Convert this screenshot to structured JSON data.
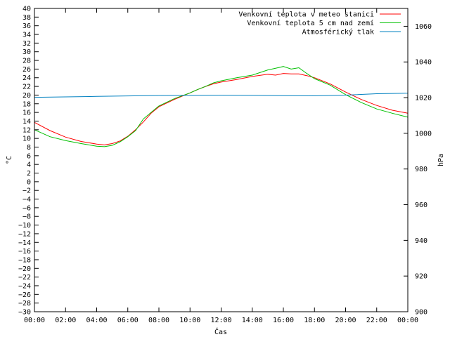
{
  "chart_data": {
    "type": "line",
    "xlabel": "Čas",
    "ylabel": "°C",
    "y2label": "hPa",
    "xlim": [
      0,
      24
    ],
    "ylim": [
      -30,
      40
    ],
    "y2lim": [
      900,
      1070
    ],
    "x_ticks": [
      "00:00",
      "02:00",
      "04:00",
      "06:00",
      "08:00",
      "10:00",
      "12:00",
      "14:00",
      "16:00",
      "18:00",
      "20:00",
      "22:00",
      "00:00"
    ],
    "y_ticks": [
      40,
      38,
      36,
      34,
      32,
      30,
      28,
      26,
      24,
      22,
      20,
      18,
      16,
      14,
      12,
      10,
      8,
      6,
      4,
      2,
      0,
      -2,
      -4,
      -6,
      -8,
      -10,
      -12,
      -14,
      -16,
      -18,
      -20,
      -22,
      -24,
      -26,
      -28,
      -30
    ],
    "y_tick_labels": [
      "40",
      "38",
      "36",
      "34",
      "32",
      "30",
      "28",
      "26",
      "24",
      "22",
      "20",
      "18",
      "16",
      "14",
      "12",
      "10",
      "8",
      "6",
      "4",
      "2",
      "0",
      "−2",
      "−4",
      "−6",
      "−8",
      "−10",
      "−12",
      "−14",
      "−16",
      "−18",
      "−20",
      "−22",
      "−24",
      "−26",
      "−28",
      "−30"
    ],
    "y2_ticks": [
      1060,
      1040,
      1020,
      1000,
      980,
      960,
      940,
      920,
      900
    ],
    "y2_tick_labels": [
      "1060",
      "1040",
      "1020",
      "1000",
      "980",
      "960",
      "940",
      "920",
      "900"
    ],
    "grid": false,
    "legend_position": "top-right",
    "series": [
      {
        "name": "Venkovní teplota v meteo stanici",
        "color": "#ff0000",
        "axis": "left",
        "x": [
          0,
          1,
          2,
          3,
          4,
          4.5,
          5,
          5.5,
          6,
          6.5,
          7,
          7.5,
          8,
          9,
          10,
          10.5,
          11,
          11.5,
          12,
          13,
          14,
          15,
          15.5,
          16,
          16.5,
          17,
          17.5,
          18,
          19,
          20,
          21,
          22,
          23,
          24
        ],
        "values": [
          13.7,
          11.8,
          10.3,
          9.3,
          8.7,
          8.5,
          8.8,
          9.4,
          10.5,
          12.0,
          13.8,
          15.8,
          17.3,
          19.0,
          20.5,
          21.3,
          22.0,
          22.6,
          23.0,
          23.6,
          24.3,
          24.8,
          24.6,
          25.0,
          24.9,
          24.9,
          24.5,
          24.0,
          22.6,
          20.7,
          19.0,
          17.6,
          16.5,
          15.8
        ]
      },
      {
        "name": "Venkovní teplota 5 cm nad zemí",
        "color": "#00c000",
        "axis": "left",
        "x": [
          0,
          1,
          2,
          3,
          4,
          4.5,
          5,
          5.5,
          6,
          6.5,
          7,
          7.5,
          8,
          9,
          10,
          10.5,
          11,
          11.5,
          12,
          13,
          14,
          15,
          15.5,
          16,
          16.5,
          17,
          17.5,
          18,
          19,
          20,
          21,
          22,
          23,
          24
        ],
        "values": [
          12.0,
          10.4,
          9.5,
          8.8,
          8.2,
          8.1,
          8.4,
          9.2,
          10.4,
          11.8,
          14.5,
          16.0,
          17.5,
          19.2,
          20.5,
          21.3,
          22.0,
          22.8,
          23.3,
          24.0,
          24.6,
          25.8,
          26.2,
          26.6,
          26.0,
          26.3,
          25.0,
          23.8,
          22.3,
          20.1,
          18.3,
          16.8,
          15.8,
          14.9
        ]
      },
      {
        "name": "Atmosférický tlak",
        "color": "#0080c0",
        "axis": "right",
        "x": [
          0,
          4,
          8,
          12,
          14,
          16,
          18,
          20,
          22,
          24
        ],
        "values": [
          1020.2,
          1020.7,
          1021.2,
          1021.4,
          1021.3,
          1021.1,
          1021.0,
          1021.4,
          1022.2,
          1022.5
        ]
      }
    ]
  }
}
